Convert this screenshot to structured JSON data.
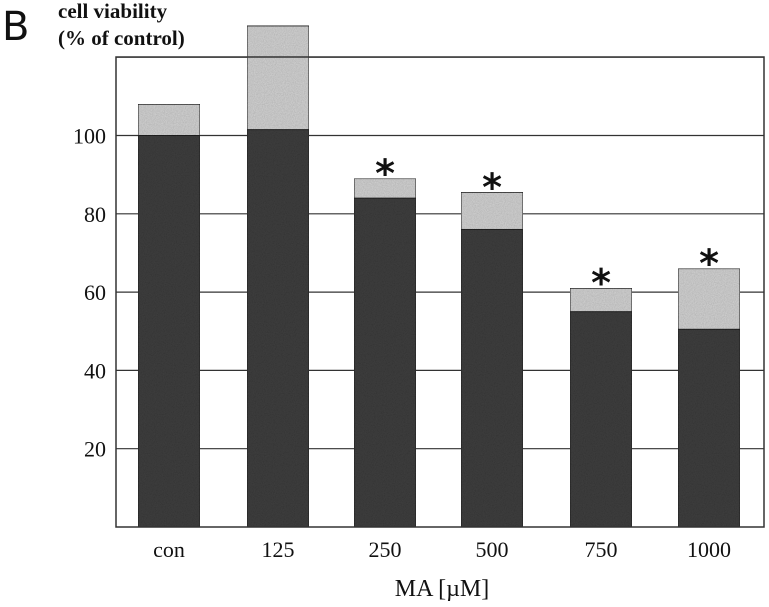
{
  "panel_label": "B",
  "chart_data": {
    "type": "bar",
    "stacked": true,
    "ylabel": [
      "cell viability",
      "(% of control)"
    ],
    "xlabel": "MA [µM]",
    "categories": [
      "con",
      "125",
      "250",
      "500",
      "750",
      "1000"
    ],
    "ylim": [
      0,
      127
    ],
    "yticks": [
      20,
      40,
      60,
      80,
      100
    ],
    "grid": true,
    "series": [
      {
        "values": [
          100,
          101.5,
          84,
          76,
          55,
          50.5
        ],
        "color": "#3f3f3f"
      },
      {
        "values": [
          8,
          26.5,
          5,
          9.5,
          6,
          15.5
        ],
        "color": "#d4d4d4"
      }
    ],
    "annotations": [
      "",
      "",
      "*",
      "*",
      "*",
      "*"
    ]
  }
}
